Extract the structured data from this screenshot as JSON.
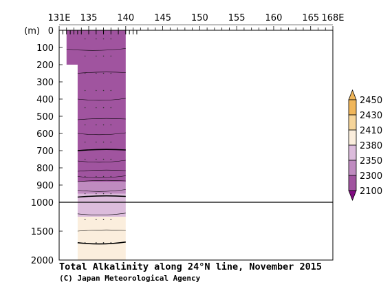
{
  "chart_data": {
    "type": "heatmap",
    "title": "Total Alkalinity along 24°N line, November 2015",
    "credit": "(C) Japan Meteorological Agency",
    "x_axis": {
      "range": [
        131,
        168
      ],
      "tick_labels": [
        {
          "value": 131,
          "label": "131E"
        },
        {
          "value": 135,
          "label": "135"
        },
        {
          "value": 140,
          "label": "140"
        },
        {
          "value": 145,
          "label": "145"
        },
        {
          "value": 150,
          "label": "150"
        },
        {
          "value": 155,
          "label": "155"
        },
        {
          "value": 160,
          "label": "160"
        },
        {
          "value": 165,
          "label": "165"
        },
        {
          "value": 168,
          "label": "168E"
        }
      ]
    },
    "y_axis": {
      "unit_label": "(m)",
      "upper_range": [
        0,
        1000
      ],
      "lower_range": [
        1000,
        2000
      ],
      "tick_labels": [
        "0",
        "100",
        "200",
        "300",
        "400",
        "500",
        "600",
        "700",
        "800",
        "900",
        "1000",
        "1500",
        "2000"
      ]
    },
    "station_longitudes": [
      131.5,
      132,
      132.5,
      133,
      133.5,
      134,
      135,
      136,
      137,
      138,
      139,
      140,
      140.5,
      141,
      141.5
    ],
    "legend": {
      "levels": [
        "2450",
        "2430",
        "2410",
        "2380",
        "2350",
        "2300",
        "2100"
      ],
      "colors": [
        "#f0b65a",
        "#f6d59a",
        "#fbeedd",
        "#dcbcdc",
        "#bf8bc0",
        "#a0549f",
        "#800a80"
      ]
    },
    "section": [
      {
        "lon_start": 132,
        "lon_end": 140,
        "depth_start": 0,
        "depth_end": 200,
        "value": 2330
      },
      {
        "lon_start": 133.5,
        "lon_end": 140,
        "depth_start": 200,
        "depth_end": 700,
        "value": 2320
      },
      {
        "lon_start": 133.5,
        "lon_end": 140,
        "depth_start": 700,
        "depth_end": 880,
        "value": 2330
      },
      {
        "lon_start": 133.5,
        "lon_end": 140,
        "depth_start": 880,
        "depth_end": 950,
        "value": 2360
      },
      {
        "lon_start": 133.5,
        "lon_end": 140,
        "depth_start": 950,
        "depth_end": 1000,
        "value": 2385
      },
      {
        "lon_start": 133.5,
        "lon_end": 140,
        "depth_start": 1000,
        "depth_end": 1250,
        "value": 2385
      },
      {
        "lon_start": 133.5,
        "lon_end": 140,
        "depth_start": 1250,
        "depth_end": 2000,
        "value": 2415
      }
    ],
    "contour_depths": [
      110,
      250,
      400,
      520,
      600,
      700,
      760,
      820,
      850,
      880,
      930,
      970,
      1200,
      1500,
      1700
    ],
    "bold_contour_depths": [
      700,
      970,
      1700
    ]
  }
}
